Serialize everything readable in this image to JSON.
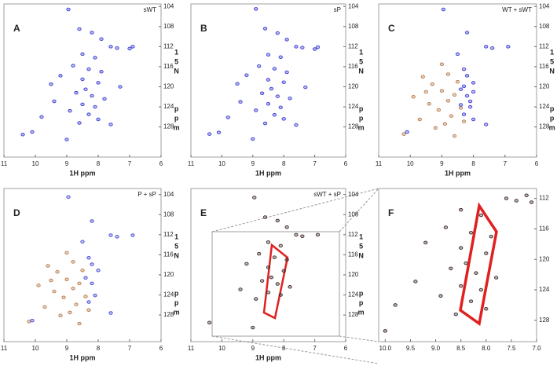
{
  "chart_data": [
    {
      "type": "scatter",
      "panel": "A",
      "legend": "sWT",
      "xlabel": "1H ppm",
      "ylabel": [
        "15N",
        "ppm"
      ],
      "xlim": [
        11,
        6
      ],
      "ylim": [
        103.5,
        134
      ],
      "xticks": [
        11,
        10,
        9,
        8,
        7,
        6
      ],
      "yticks": [
        104,
        108,
        112,
        116,
        120,
        124,
        128
      ],
      "series": [
        {
          "color": "#3b3bd4",
          "x": [
            8.95,
            8.6,
            8.2,
            7.9,
            7.6,
            7.4,
            6.9,
            7.0,
            8.5,
            8.1,
            8.8,
            8.3,
            7.9,
            9.2,
            8.5,
            8.0,
            8.4,
            8.7,
            8.2,
            7.8,
            9.4,
            8.5,
            8.1,
            8.9,
            8.3,
            9.8,
            8.0,
            8.6,
            10.4,
            10.1,
            9.0,
            7.6,
            9.5,
            7.3
          ],
          "values": [
            104.6,
            108.5,
            109.2,
            110.5,
            112.0,
            112.3,
            112.0,
            112.4,
            113.5,
            114.2,
            115.8,
            116.5,
            117.0,
            117.8,
            118.5,
            119.2,
            120.5,
            121.2,
            121.8,
            122.4,
            122.9,
            123.5,
            124.0,
            124.8,
            125.5,
            126.0,
            126.5,
            127.2,
            129.5,
            129.0,
            130.5,
            127.5,
            119.5,
            120.0
          ]
        }
      ]
    },
    {
      "type": "scatter",
      "panel": "B",
      "legend": "sP",
      "xlabel": "1H ppm",
      "ylabel": [
        "15N",
        "ppm"
      ],
      "xlim": [
        11,
        6
      ],
      "ylim": [
        103.5,
        134
      ],
      "xticks": [
        11,
        10,
        9,
        8,
        7,
        6
      ],
      "yticks": [
        104,
        108,
        112,
        116,
        120,
        124,
        128
      ],
      "series": [
        {
          "color": "#3b3bd4",
          "x": [
            8.9,
            8.6,
            8.2,
            7.9,
            7.6,
            7.4,
            6.9,
            7.0,
            8.5,
            8.1,
            8.8,
            8.3,
            7.9,
            9.2,
            8.5,
            8.0,
            8.4,
            8.7,
            8.2,
            7.8,
            9.4,
            8.5,
            8.1,
            8.9,
            8.3,
            9.8,
            8.0,
            8.6,
            10.4,
            10.1,
            9.0,
            7.6,
            9.5,
            7.3
          ],
          "values": [
            104.5,
            108.4,
            109.3,
            110.6,
            112.0,
            112.2,
            112.1,
            112.5,
            113.6,
            114.1,
            115.9,
            116.4,
            117.1,
            117.7,
            118.6,
            119.1,
            120.4,
            121.3,
            121.9,
            122.3,
            123.0,
            123.4,
            124.1,
            124.7,
            125.6,
            126.1,
            126.4,
            127.3,
            129.4,
            129.1,
            130.4,
            127.6,
            119.4,
            120.1
          ]
        }
      ]
    },
    {
      "type": "scatter",
      "panel": "C",
      "legend": "WT + sWT",
      "xlabel": "1H ppm",
      "ylabel": [
        "15N",
        "ppm"
      ],
      "xlim": [
        11,
        6
      ],
      "ylim": [
        103.5,
        134
      ],
      "xticks": [
        11,
        10,
        9,
        8,
        7,
        6
      ],
      "yticks": [
        104,
        108,
        112,
        116,
        120,
        124,
        128
      ],
      "series": [
        {
          "color": "#b87a4b",
          "x": [
            9.6,
            9.3,
            9.0,
            8.8,
            9.9,
            9.4,
            8.6,
            9.1,
            8.7,
            9.7,
            8.9,
            9.2,
            8.5,
            9.5,
            8.8,
            8.4,
            10.2,
            9.0,
            8.6,
            8.3
          ],
          "values": [
            118.0,
            119.5,
            120.8,
            117.5,
            122.0,
            123.4,
            121.6,
            124.6,
            125.8,
            126.5,
            127.4,
            128.2,
            119.0,
            121.0,
            122.8,
            124.2,
            129.4,
            115.5,
            129.8,
            126.9
          ]
        },
        {
          "color": "#3b3bd4",
          "x": [
            8.95,
            8.2,
            7.6,
            7.4,
            6.9,
            8.5,
            8.3,
            8.0,
            8.4,
            8.2,
            8.1,
            8.3,
            8.0,
            10.1,
            7.6,
            8.2,
            8.1,
            8.4,
            8.0,
            8.3
          ],
          "values": [
            104.6,
            109.2,
            112.0,
            112.3,
            112.0,
            113.5,
            116.5,
            119.2,
            120.5,
            121.8,
            124.0,
            125.5,
            126.5,
            129.0,
            127.5,
            117.8,
            122.9,
            123.6,
            121.0,
            119.9
          ]
        }
      ]
    },
    {
      "type": "scatter",
      "panel": "D",
      "legend": "P + sP",
      "xlabel": "1H ppm",
      "ylabel": [
        "15N",
        "ppm"
      ],
      "xlim": [
        11,
        6
      ],
      "ylim": [
        102.8,
        133.3
      ],
      "xticks": [
        11,
        10,
        9,
        8,
        7,
        6
      ],
      "yticks": [
        104,
        108,
        112,
        116,
        120,
        124,
        128
      ],
      "series": [
        {
          "color": "#b87a4b",
          "x": [
            9.6,
            9.3,
            9.0,
            8.8,
            9.9,
            9.4,
            8.6,
            9.1,
            8.7,
            9.7,
            8.9,
            9.2,
            8.5,
            9.5,
            8.8,
            8.4,
            10.2,
            9.0,
            8.6,
            8.3
          ],
          "values": [
            118.2,
            119.4,
            120.9,
            117.4,
            122.1,
            123.3,
            121.7,
            124.5,
            125.9,
            126.4,
            127.5,
            128.1,
            119.1,
            121.1,
            122.7,
            124.3,
            129.3,
            115.6,
            129.7,
            127.0
          ]
        },
        {
          "color": "#4a4ad8",
          "x": [
            8.95,
            8.2,
            7.6,
            7.4,
            6.9,
            8.5,
            8.3,
            8.0,
            8.4,
            8.2,
            8.1,
            8.3,
            10.1,
            7.6,
            8.2
          ],
          "values": [
            104.5,
            109.3,
            112.1,
            112.4,
            112.1,
            113.4,
            116.6,
            119.1,
            120.6,
            121.7,
            124.1,
            125.4,
            129.1,
            127.6,
            117.9
          ]
        }
      ]
    },
    {
      "type": "scatter",
      "panel": "E",
      "legend": "sWT + sP",
      "xlabel": "1H ppm",
      "ylabel": [
        "15N",
        "ppm"
      ],
      "xlim": [
        11,
        6
      ],
      "ylim": [
        102.8,
        133.3
      ],
      "xticks": [
        11,
        10,
        9,
        8,
        7,
        6
      ],
      "yticks": [
        104,
        108,
        112,
        116,
        120,
        124,
        128
      ],
      "series": [
        {
          "color": "#3d2b28",
          "x": [
            8.95,
            8.6,
            8.2,
            7.9,
            7.6,
            7.4,
            6.9,
            8.5,
            8.1,
            8.8,
            8.3,
            7.9,
            9.2,
            8.5,
            8.0,
            8.4,
            8.7,
            8.2,
            7.8,
            9.4,
            8.5,
            8.1,
            8.9,
            10.4,
            9.0
          ],
          "values": [
            104.6,
            108.5,
            109.2,
            110.5,
            112.0,
            112.3,
            112.0,
            113.5,
            114.2,
            115.8,
            116.5,
            117.0,
            117.8,
            118.5,
            119.2,
            120.5,
            121.2,
            121.8,
            122.4,
            122.9,
            123.5,
            124.0,
            124.8,
            129.5,
            130.5
          ]
        }
      ]
    },
    {
      "type": "scatter",
      "panel": "F",
      "xlim": [
        10.13,
        7.0
      ],
      "ylim": [
        110.7,
        130.8
      ],
      "xticks": [
        {
          "value": 10,
          "label": "10.0"
        },
        9.5,
        {
          "value": 9,
          "label": "9.0"
        },
        8.5,
        {
          "value": 8,
          "label": "8.0"
        },
        7.5,
        {
          "value": 7,
          "label": "7.0"
        }
      ],
      "yticks": [
        112,
        116,
        120,
        124,
        128
      ],
      "series": [
        {
          "color": "#3d2b28",
          "x": [
            7.6,
            7.4,
            7.2,
            7.1,
            8.5,
            8.1,
            8.8,
            8.3,
            7.9,
            9.2,
            8.5,
            8.0,
            8.4,
            8.7,
            8.2,
            7.8,
            9.4,
            8.5,
            8.1,
            8.9,
            8.3,
            9.8,
            8.0,
            8.6,
            10.0
          ],
          "values": [
            112.0,
            112.3,
            111.6,
            112.5,
            113.5,
            114.2,
            115.8,
            116.5,
            117.0,
            117.8,
            118.5,
            119.2,
            120.5,
            121.2,
            121.8,
            122.4,
            122.9,
            123.5,
            124.0,
            124.8,
            125.5,
            126.0,
            126.5,
            127.2,
            129.4
          ]
        }
      ]
    }
  ]
}
